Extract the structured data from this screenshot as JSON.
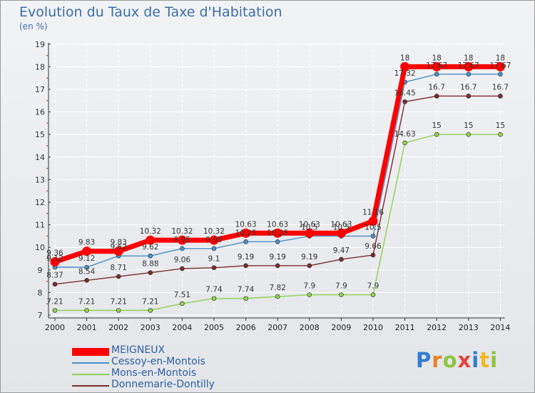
{
  "chart_data": {
    "type": "line",
    "title": "Evolution du Taux de Taxe d'Habitation",
    "ylabel": "(en %)",
    "xlabel": "",
    "x": [
      "2000",
      "2001",
      "2002",
      "2003",
      "2004",
      "2005",
      "2006",
      "2007",
      "2008",
      "2009",
      "2010",
      "2011",
      "2012",
      "2013",
      "2014"
    ],
    "ylim": [
      7,
      19
    ],
    "yticks": [
      "7",
      "8",
      "9",
      "10",
      "11",
      "12",
      "13",
      "14",
      "15",
      "16",
      "17",
      "18",
      "19"
    ],
    "legend_position": "bottom-left",
    "series": [
      {
        "name": "MEIGNEUX",
        "color": "#ff0000",
        "values": [
          9.36,
          9.83,
          9.83,
          10.32,
          10.32,
          10.32,
          10.63,
          10.63,
          10.63,
          10.63,
          11.16,
          18,
          18,
          18,
          18
        ],
        "labels": [
          "9.36",
          "9.83",
          "9.83",
          "10.32",
          "10.32",
          "10.32",
          "10.63",
          "10.63",
          "10.63",
          "10.63",
          "11.16",
          "18",
          "18",
          "18",
          "18"
        ]
      },
      {
        "name": "Cessoy-en-Montois",
        "color": "#4a90c8",
        "values": [
          9.12,
          9.12,
          9.62,
          9.62,
          9.95,
          9.95,
          10.25,
          10.25,
          10.5,
          10.5,
          10.5,
          17.32,
          17.67,
          17.67,
          17.67
        ],
        "labels": [
          "9.12",
          "9.12",
          "9.62",
          "9.62",
          "9.95",
          "9.95",
          "10.25",
          "10.25",
          "10.5",
          "10.5",
          "10.5",
          "17.32",
          "17.67",
          "17.67",
          "17.67"
        ]
      },
      {
        "name": "Mons-en-Montois",
        "color": "#92d050",
        "values": [
          7.21,
          7.21,
          7.21,
          7.21,
          7.51,
          7.74,
          7.74,
          7.82,
          7.9,
          7.9,
          7.9,
          14.63,
          15,
          15,
          15
        ],
        "labels": [
          "7.21",
          "7.21",
          "7.21",
          "7.21",
          "7.51",
          "7.74",
          "7.74",
          "7.82",
          "7.9",
          "7.9",
          "7.9",
          "14.63",
          "15",
          "15",
          "15"
        ]
      },
      {
        "name": "Donnemarie-Dontilly",
        "color": "#7b2c2c",
        "values": [
          8.37,
          8.54,
          8.71,
          8.88,
          9.06,
          9.1,
          9.19,
          9.19,
          9.19,
          9.47,
          9.66,
          16.45,
          16.7,
          16.7,
          16.7
        ],
        "labels": [
          "8.37",
          "8.54",
          "8.71",
          "8.88",
          "9.06",
          "9.1",
          "9.19",
          "9.19",
          "9.19",
          "9.47",
          "9.66",
          "16.45",
          "16.7",
          "16.7",
          "16.7"
        ]
      }
    ]
  },
  "logo": {
    "text": "Proxiti",
    "colors": [
      "#2f7fd0",
      "#e8822a",
      "#8cc63f",
      "#e8443a",
      "#2f7fd0",
      "#f2b81f",
      "#8cc63f"
    ]
  }
}
